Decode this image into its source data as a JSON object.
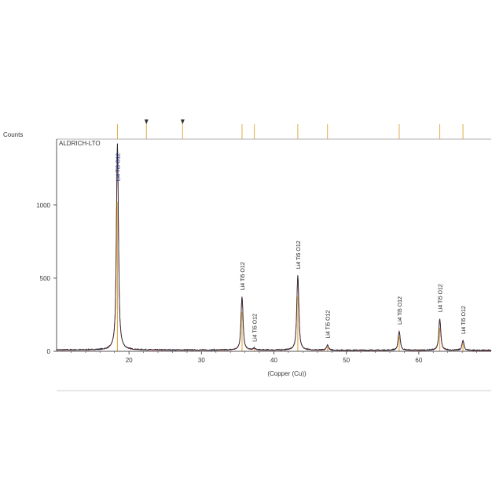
{
  "chart_data": {
    "type": "line",
    "title": "ALDRICH-LTO",
    "xlabel": "(Copper (Cu))",
    "ylabel": "Counts",
    "xlim": [
      10,
      70
    ],
    "ylim": [
      0,
      1450
    ],
    "x_ticks": [
      "20",
      "30",
      "40",
      "50",
      "60"
    ],
    "y_ticks": [
      "0",
      "500",
      "1000"
    ],
    "grid": false,
    "legend": "none",
    "peaks": [
      {
        "x": 18.4,
        "y": 1420,
        "label": "Li4 Ti5 O12"
      },
      {
        "x": 35.6,
        "y": 375,
        "label": "Li4 Ti5 O12"
      },
      {
        "x": 37.3,
        "y": 22,
        "label": "Li4 Ti5 O12"
      },
      {
        "x": 43.3,
        "y": 520,
        "label": "Li4 Ti5 O12"
      },
      {
        "x": 47.4,
        "y": 45,
        "label": "Li4 Ti5 O12"
      },
      {
        "x": 57.3,
        "y": 140,
        "label": "Li4 Ti5 O12"
      },
      {
        "x": 62.9,
        "y": 225,
        "label": "Li4 Ti5 O12"
      },
      {
        "x": 66.1,
        "y": 75,
        "label": "Li4 Ti5 O12"
      }
    ],
    "reference_lines_x": [
      18.4,
      35.6,
      37.3,
      43.3,
      47.4,
      57.3,
      62.9,
      66.1
    ],
    "markers_x": [
      22.4,
      27.4
    ],
    "colors": {
      "profile": "#2a2a3c",
      "fit": "#c83c28",
      "reference": "#e0ae4a",
      "peak_label": "#1a2f8c",
      "axis": "#555555"
    }
  }
}
